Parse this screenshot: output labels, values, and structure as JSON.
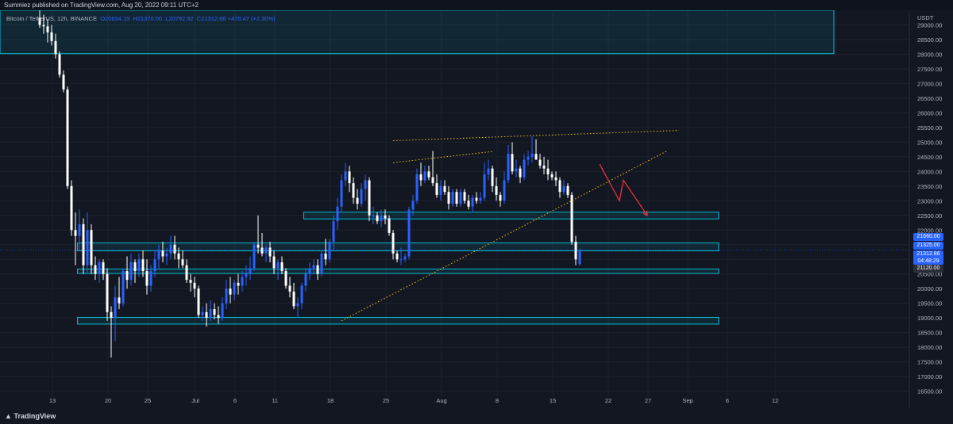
{
  "header": {
    "published": "Summiez published on TradingView.com, Aug 20, 2022 09:11 UTC+2"
  },
  "legend": {
    "symbol": "Bitcoin / TetherUS, 12h, BINANCE",
    "o_label": "O",
    "o": "20834.19",
    "h_label": "H",
    "h": "21370.00",
    "l_label": "L",
    "l": "20792.92",
    "c_label": "C",
    "c": "21312.86",
    "change": "+478.47 (+2.30%)"
  },
  "price_tags": [
    {
      "text": "21660.00",
      "color": "#2962ff"
    },
    {
      "text": "21325.00",
      "color": "#2962ff"
    },
    {
      "text": "21312.86",
      "countdown": "04:48:29",
      "color": "#2962ff"
    },
    {
      "text": "21120.00",
      "color": "#2a2e39"
    }
  ],
  "footer": {
    "brand": "TradingView"
  },
  "chart_data": {
    "type": "candlestick",
    "ylabel": "USDT",
    "ylim": [
      16300,
      29500
    ],
    "y_ticks": [
      16500,
      17000,
      17500,
      18000,
      18500,
      19000,
      19500,
      20000,
      20500,
      21000,
      21500,
      22000,
      22500,
      23000,
      23500,
      24000,
      24500,
      25000,
      25500,
      26000,
      26500,
      27000,
      27500,
      28000,
      28500,
      29000
    ],
    "x_ticks": [
      {
        "label": "6",
        "i": -10.8
      },
      {
        "label": "13",
        "i": 3.2
      },
      {
        "label": "20",
        "i": 17.2
      },
      {
        "label": "25",
        "i": 27.2
      },
      {
        "label": "Jul",
        "i": 39.2
      },
      {
        "label": "6",
        "i": 49.2
      },
      {
        "label": "11",
        "i": 59.2
      },
      {
        "label": "18",
        "i": 73.2
      },
      {
        "label": "25",
        "i": 87.2
      },
      {
        "label": "Aug",
        "i": 101.2
      },
      {
        "label": "8",
        "i": 115.2
      },
      {
        "label": "15",
        "i": 129.2
      },
      {
        "label": "22",
        "i": 143.2
      },
      {
        "label": "27",
        "i": 153.2
      },
      {
        "label": "Sep",
        "i": 163.2
      },
      {
        "label": "6",
        "i": 173.2
      },
      {
        "label": "12",
        "i": 185.2
      }
    ],
    "zones": [
      {
        "top": 31400,
        "bottom": 28020,
        "from_i": -12,
        "to_i": 200
      },
      {
        "top": 22610,
        "bottom": 22380,
        "from_i": 66.5,
        "to_i": 171
      },
      {
        "top": 21560,
        "bottom": 21290,
        "from_i": 9.5,
        "to_i": 171
      },
      {
        "top": 20670,
        "bottom": 20520,
        "from_i": 9.5,
        "to_i": 171
      },
      {
        "top": 19020,
        "bottom": 18790,
        "from_i": 9.5,
        "to_i": 171
      }
    ],
    "lines": [
      {
        "style": "dotted",
        "color": "#f0c419",
        "points": [
          [
            89,
            25050
          ],
          [
            161,
            25400
          ]
        ]
      },
      {
        "style": "dotted",
        "color": "#f0c419",
        "points": [
          [
            76,
            18900
          ],
          [
            158,
            24700
          ]
        ]
      },
      {
        "style": "dotted",
        "color": "#f0c419",
        "points": [
          [
            89,
            24300
          ],
          [
            114,
            24680
          ]
        ]
      }
    ],
    "arrows": [
      {
        "color": "#f23645",
        "points": [
          [
            141,
            24250
          ],
          [
            146,
            23000
          ],
          [
            147,
            23700
          ],
          [
            153,
            22500
          ]
        ]
      }
    ],
    "candles": [
      {
        "o": 29250,
        "h": 29500,
        "l": 28900,
        "c": 29000
      },
      {
        "o": 29000,
        "h": 29350,
        "l": 28700,
        "c": 28950
      },
      {
        "o": 28950,
        "h": 29200,
        "l": 28400,
        "c": 28750
      },
      {
        "o": 28750,
        "h": 29000,
        "l": 28300,
        "c": 28450
      },
      {
        "o": 28450,
        "h": 28700,
        "l": 27850,
        "c": 28000
      },
      {
        "o": 28000,
        "h": 28100,
        "l": 27200,
        "c": 27300
      },
      {
        "o": 27300,
        "h": 27450,
        "l": 26700,
        "c": 26800
      },
      {
        "o": 26800,
        "h": 26900,
        "l": 23400,
        "c": 23500
      },
      {
        "o": 23500,
        "h": 23700,
        "l": 21800,
        "c": 22000
      },
      {
        "o": 22000,
        "h": 22600,
        "l": 20800,
        "c": 21800
      },
      {
        "o": 21800,
        "h": 22700,
        "l": 21300,
        "c": 22200
      },
      {
        "o": 22200,
        "h": 22400,
        "l": 20500,
        "c": 20800
      },
      {
        "o": 20800,
        "h": 22600,
        "l": 20500,
        "c": 22000
      },
      {
        "o": 22000,
        "h": 22200,
        "l": 20500,
        "c": 20800
      },
      {
        "o": 20800,
        "h": 21100,
        "l": 20300,
        "c": 20500
      },
      {
        "o": 20500,
        "h": 21000,
        "l": 20200,
        "c": 20900
      },
      {
        "o": 20900,
        "h": 21000,
        "l": 20300,
        "c": 20500
      },
      {
        "o": 20500,
        "h": 20700,
        "l": 18900,
        "c": 19200
      },
      {
        "o": 19200,
        "h": 19400,
        "l": 17650,
        "c": 19000
      },
      {
        "o": 19000,
        "h": 20100,
        "l": 18200,
        "c": 19700
      },
      {
        "o": 19700,
        "h": 20400,
        "l": 19300,
        "c": 19500
      },
      {
        "o": 19500,
        "h": 20700,
        "l": 19400,
        "c": 20600
      },
      {
        "o": 20600,
        "h": 21100,
        "l": 20000,
        "c": 20300
      },
      {
        "o": 20300,
        "h": 21200,
        "l": 20100,
        "c": 20900
      },
      {
        "o": 20900,
        "h": 21000,
        "l": 20200,
        "c": 20600
      },
      {
        "o": 20600,
        "h": 21200,
        "l": 20400,
        "c": 21000
      },
      {
        "o": 21000,
        "h": 21300,
        "l": 20400,
        "c": 20600
      },
      {
        "o": 20600,
        "h": 21000,
        "l": 19800,
        "c": 20100
      },
      {
        "o": 20100,
        "h": 20800,
        "l": 19900,
        "c": 20600
      },
      {
        "o": 20600,
        "h": 21300,
        "l": 20400,
        "c": 21000
      },
      {
        "o": 21000,
        "h": 21500,
        "l": 20700,
        "c": 21300
      },
      {
        "o": 21300,
        "h": 21600,
        "l": 20900,
        "c": 21100
      },
      {
        "o": 21100,
        "h": 21400,
        "l": 20800,
        "c": 21200
      },
      {
        "o": 21200,
        "h": 21800,
        "l": 21000,
        "c": 21500
      },
      {
        "o": 21500,
        "h": 21800,
        "l": 21000,
        "c": 21200
      },
      {
        "o": 21200,
        "h": 21400,
        "l": 20700,
        "c": 21000
      },
      {
        "o": 21000,
        "h": 21300,
        "l": 20700,
        "c": 20800
      },
      {
        "o": 20800,
        "h": 21000,
        "l": 20200,
        "c": 20300
      },
      {
        "o": 20300,
        "h": 20500,
        "l": 19900,
        "c": 20200
      },
      {
        "o": 20200,
        "h": 20400,
        "l": 19700,
        "c": 20000
      },
      {
        "o": 20000,
        "h": 20100,
        "l": 19000,
        "c": 19100
      },
      {
        "o": 19100,
        "h": 19400,
        "l": 18900,
        "c": 19200
      },
      {
        "o": 19200,
        "h": 19500,
        "l": 18700,
        "c": 19000
      },
      {
        "o": 19000,
        "h": 19600,
        "l": 18900,
        "c": 19300
      },
      {
        "o": 19300,
        "h": 19500,
        "l": 18950,
        "c": 19100
      },
      {
        "o": 19100,
        "h": 19400,
        "l": 18800,
        "c": 19000
      },
      {
        "o": 19000,
        "h": 19700,
        "l": 18900,
        "c": 19500
      },
      {
        "o": 19500,
        "h": 20300,
        "l": 19300,
        "c": 20000
      },
      {
        "o": 20000,
        "h": 20400,
        "l": 19500,
        "c": 19800
      },
      {
        "o": 19800,
        "h": 20300,
        "l": 19600,
        "c": 20200
      },
      {
        "o": 20200,
        "h": 20500,
        "l": 19800,
        "c": 20100
      },
      {
        "o": 20100,
        "h": 20600,
        "l": 19900,
        "c": 20400
      },
      {
        "o": 20400,
        "h": 20800,
        "l": 20100,
        "c": 20500
      },
      {
        "o": 20500,
        "h": 21100,
        "l": 20300,
        "c": 20700
      },
      {
        "o": 20700,
        "h": 21600,
        "l": 20600,
        "c": 21500
      },
      {
        "o": 21500,
        "h": 22500,
        "l": 21200,
        "c": 21400
      },
      {
        "o": 21400,
        "h": 21900,
        "l": 21100,
        "c": 21200
      },
      {
        "o": 21200,
        "h": 21500,
        "l": 20900,
        "c": 21400
      },
      {
        "o": 21400,
        "h": 21600,
        "l": 20900,
        "c": 21100
      },
      {
        "o": 21100,
        "h": 21300,
        "l": 20500,
        "c": 20700
      },
      {
        "o": 20700,
        "h": 21000,
        "l": 20300,
        "c": 20900
      },
      {
        "o": 20900,
        "h": 21100,
        "l": 20500,
        "c": 20600
      },
      {
        "o": 20600,
        "h": 20700,
        "l": 20000,
        "c": 20100
      },
      {
        "o": 20100,
        "h": 20400,
        "l": 19700,
        "c": 19900
      },
      {
        "o": 19900,
        "h": 20200,
        "l": 19300,
        "c": 19400
      },
      {
        "o": 19400,
        "h": 19700,
        "l": 19000,
        "c": 19500
      },
      {
        "o": 19500,
        "h": 20200,
        "l": 19300,
        "c": 20100
      },
      {
        "o": 20100,
        "h": 20700,
        "l": 19900,
        "c": 20500
      },
      {
        "o": 20500,
        "h": 20900,
        "l": 20300,
        "c": 20700
      },
      {
        "o": 20700,
        "h": 21000,
        "l": 20500,
        "c": 20800
      },
      {
        "o": 20800,
        "h": 21000,
        "l": 20300,
        "c": 20500
      },
      {
        "o": 20500,
        "h": 21300,
        "l": 20400,
        "c": 21200
      },
      {
        "o": 21200,
        "h": 21700,
        "l": 20800,
        "c": 21000
      },
      {
        "o": 21000,
        "h": 21700,
        "l": 20900,
        "c": 21600
      },
      {
        "o": 21600,
        "h": 22500,
        "l": 21300,
        "c": 22300
      },
      {
        "o": 22300,
        "h": 23100,
        "l": 22000,
        "c": 22800
      },
      {
        "o": 22800,
        "h": 23900,
        "l": 22600,
        "c": 23700
      },
      {
        "o": 23700,
        "h": 24300,
        "l": 23500,
        "c": 24000
      },
      {
        "o": 24000,
        "h": 24200,
        "l": 23300,
        "c": 23600
      },
      {
        "o": 23600,
        "h": 23800,
        "l": 22900,
        "c": 23100
      },
      {
        "o": 23100,
        "h": 23400,
        "l": 22700,
        "c": 22900
      },
      {
        "o": 22900,
        "h": 23600,
        "l": 22800,
        "c": 23400
      },
      {
        "o": 23400,
        "h": 23900,
        "l": 23000,
        "c": 23700
      },
      {
        "o": 23700,
        "h": 23800,
        "l": 22300,
        "c": 22500
      },
      {
        "o": 22500,
        "h": 22800,
        "l": 22200,
        "c": 22500
      },
      {
        "o": 22500,
        "h": 22600,
        "l": 22200,
        "c": 22300
      },
      {
        "o": 22300,
        "h": 22700,
        "l": 22100,
        "c": 22500
      },
      {
        "o": 22500,
        "h": 22700,
        "l": 22200,
        "c": 22400
      },
      {
        "o": 22400,
        "h": 22500,
        "l": 21800,
        "c": 21900
      },
      {
        "o": 21900,
        "h": 22000,
        "l": 21000,
        "c": 21200
      },
      {
        "o": 21200,
        "h": 21300,
        "l": 20900,
        "c": 21000
      },
      {
        "o": 21000,
        "h": 21400,
        "l": 20800,
        "c": 21000
      },
      {
        "o": 21000,
        "h": 21200,
        "l": 20900,
        "c": 21100
      },
      {
        "o": 21100,
        "h": 22800,
        "l": 21000,
        "c": 22700
      },
      {
        "o": 22700,
        "h": 23200,
        "l": 22500,
        "c": 23000
      },
      {
        "o": 23000,
        "h": 24100,
        "l": 22900,
        "c": 23900
      },
      {
        "o": 23900,
        "h": 24300,
        "l": 23500,
        "c": 23700
      },
      {
        "o": 23700,
        "h": 24200,
        "l": 23600,
        "c": 24000
      },
      {
        "o": 24000,
        "h": 24200,
        "l": 23700,
        "c": 23800
      },
      {
        "o": 23800,
        "h": 24700,
        "l": 23500,
        "c": 23600
      },
      {
        "o": 23600,
        "h": 23900,
        "l": 23100,
        "c": 23200
      },
      {
        "o": 23200,
        "h": 23700,
        "l": 23000,
        "c": 23500
      },
      {
        "o": 23500,
        "h": 23700,
        "l": 23200,
        "c": 23300
      },
      {
        "o": 23300,
        "h": 23500,
        "l": 22700,
        "c": 22900
      },
      {
        "o": 22900,
        "h": 23400,
        "l": 22800,
        "c": 23300
      },
      {
        "o": 23300,
        "h": 23400,
        "l": 22800,
        "c": 22900
      },
      {
        "o": 22900,
        "h": 23400,
        "l": 22800,
        "c": 23300
      },
      {
        "o": 23300,
        "h": 23400,
        "l": 22900,
        "c": 23000
      },
      {
        "o": 23000,
        "h": 23200,
        "l": 22700,
        "c": 22800
      },
      {
        "o": 22800,
        "h": 23200,
        "l": 22600,
        "c": 23100
      },
      {
        "o": 23100,
        "h": 23300,
        "l": 22900,
        "c": 23000
      },
      {
        "o": 23000,
        "h": 23300,
        "l": 22900,
        "c": 23100
      },
      {
        "o": 23100,
        "h": 24300,
        "l": 23000,
        "c": 23900
      },
      {
        "o": 23900,
        "h": 24400,
        "l": 23700,
        "c": 24100
      },
      {
        "o": 24100,
        "h": 24200,
        "l": 23300,
        "c": 23500
      },
      {
        "o": 23500,
        "h": 23800,
        "l": 23000,
        "c": 23200
      },
      {
        "o": 23200,
        "h": 23300,
        "l": 22800,
        "c": 23000
      },
      {
        "o": 23000,
        "h": 24000,
        "l": 22900,
        "c": 23700
      },
      {
        "o": 23700,
        "h": 24900,
        "l": 23600,
        "c": 24600
      },
      {
        "o": 24600,
        "h": 25000,
        "l": 23900,
        "c": 24000
      },
      {
        "o": 24000,
        "h": 24400,
        "l": 23800,
        "c": 24100
      },
      {
        "o": 24100,
        "h": 24200,
        "l": 23600,
        "c": 23800
      },
      {
        "o": 23800,
        "h": 24600,
        "l": 23700,
        "c": 24400
      },
      {
        "o": 24400,
        "h": 24700,
        "l": 24200,
        "c": 24500
      },
      {
        "o": 24500,
        "h": 25200,
        "l": 24300,
        "c": 24600
      },
      {
        "o": 24600,
        "h": 25100,
        "l": 24400,
        "c": 24400
      },
      {
        "o": 24400,
        "h": 24600,
        "l": 24100,
        "c": 24200
      },
      {
        "o": 24200,
        "h": 24500,
        "l": 23900,
        "c": 24100
      },
      {
        "o": 24100,
        "h": 24400,
        "l": 23700,
        "c": 23900
      },
      {
        "o": 23900,
        "h": 24000,
        "l": 23700,
        "c": 23800
      },
      {
        "o": 23800,
        "h": 24000,
        "l": 23500,
        "c": 23700
      },
      {
        "o": 23700,
        "h": 23800,
        "l": 23100,
        "c": 23300
      },
      {
        "o": 23300,
        "h": 23700,
        "l": 23200,
        "c": 23500
      },
      {
        "o": 23500,
        "h": 23600,
        "l": 23100,
        "c": 23200
      },
      {
        "o": 23200,
        "h": 23300,
        "l": 21500,
        "c": 21600
      },
      {
        "o": 21600,
        "h": 21800,
        "l": 20800,
        "c": 21000
      },
      {
        "o": 20834.19,
        "h": 21370,
        "l": 20792.92,
        "c": 21312.86
      }
    ]
  }
}
